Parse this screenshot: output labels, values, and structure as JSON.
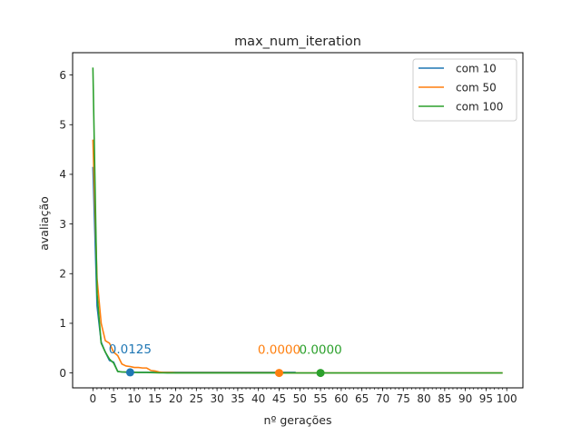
{
  "chart_data": {
    "type": "line",
    "title": "max_num_iteration",
    "xlabel": "nº gerações",
    "ylabel": "avaliação",
    "xlim": [
      -4.9,
      103.9
    ],
    "ylim": [
      -0.3,
      6.45
    ],
    "xticks": [
      "0",
      "5",
      "10",
      "15",
      "20",
      "25",
      "30",
      "35",
      "40",
      "45",
      "50",
      "55",
      "60",
      "65",
      "70",
      "75",
      "80",
      "85",
      "90",
      "95",
      "100"
    ],
    "xtick_values": [
      0,
      5,
      10,
      15,
      20,
      25,
      30,
      35,
      40,
      45,
      50,
      55,
      60,
      65,
      70,
      75,
      80,
      85,
      90,
      95,
      100
    ],
    "xminor_step": 1,
    "yticks": [
      "0",
      "1",
      "2",
      "3",
      "4",
      "5",
      "6"
    ],
    "ytick_values": [
      0,
      1,
      2,
      3,
      4,
      5,
      6
    ],
    "grid": false,
    "legend_position": "upper right",
    "series": [
      {
        "name": "com 10",
        "color": "#1f77b4",
        "x": [
          0,
          1,
          2,
          3,
          4,
          5,
          6,
          7,
          8,
          9,
          10,
          11,
          12,
          13,
          14,
          15,
          16,
          17,
          18,
          19,
          20,
          21,
          22,
          23,
          24,
          25,
          26,
          27,
          28,
          29,
          30,
          31,
          32,
          33,
          34,
          35,
          36,
          37,
          38,
          39,
          40,
          41,
          42,
          43,
          44,
          45,
          46,
          47,
          48,
          49
        ],
        "y": [
          4.15,
          1.35,
          0.62,
          0.42,
          0.25,
          0.22,
          0.03,
          0.02,
          0.015,
          0.0125,
          0.0125,
          0.0125,
          0.0125,
          0.0125,
          0.0125,
          0.0125,
          0.0125,
          0.0125,
          0.0125,
          0.0125,
          0.0125,
          0.0125,
          0.0125,
          0.0125,
          0.0125,
          0.0125,
          0.0125,
          0.0125,
          0.0125,
          0.0125,
          0.0125,
          0.0125,
          0.0125,
          0.0125,
          0.0125,
          0.0125,
          0.0125,
          0.0125,
          0.0125,
          0.0125,
          0.0125,
          0.0125,
          0.0125,
          0.0125,
          0.0125,
          0.0125,
          0.0125,
          0.0125,
          0.0125,
          0.0125
        ],
        "marker": {
          "x": 9,
          "y": 0.0125,
          "label": "0.0125"
        }
      },
      {
        "name": "com 50",
        "color": "#ff7f0e",
        "x": [
          0,
          1,
          2,
          3,
          4,
          5,
          6,
          7,
          8,
          9,
          10,
          11,
          12,
          13,
          14,
          15,
          16,
          17,
          18,
          19,
          20,
          21,
          22,
          23,
          24,
          25,
          26,
          27,
          28,
          29,
          30,
          31,
          32,
          33,
          34,
          35,
          36,
          37,
          38,
          39,
          40,
          41,
          42,
          43,
          44,
          45,
          46,
          47,
          48,
          49,
          50,
          51,
          52,
          53,
          54,
          55,
          56,
          57,
          58,
          59,
          60,
          61,
          62,
          63,
          64,
          65,
          66,
          67,
          68,
          69,
          70,
          71,
          72,
          73,
          74,
          75,
          76,
          77,
          78,
          79,
          80,
          81,
          82,
          83,
          84,
          85,
          86,
          87,
          88,
          89,
          90,
          91,
          92,
          93,
          94,
          95,
          96,
          97,
          98,
          99
        ],
        "y": [
          4.7,
          1.9,
          1.0,
          0.65,
          0.6,
          0.42,
          0.35,
          0.18,
          0.14,
          0.13,
          0.11,
          0.11,
          0.1,
          0.1,
          0.05,
          0.04,
          0.02,
          0.01,
          0.01,
          0.01,
          0.005,
          0.005,
          0.005,
          0.005,
          0.005,
          0.005,
          0.005,
          0.005,
          0.005,
          0.005,
          0.005,
          0.005,
          0.005,
          0.005,
          0.005,
          0.005,
          0.005,
          0.005,
          0.005,
          0.005,
          0.005,
          0.005,
          0.005,
          0.005,
          0.005,
          0.0,
          0.0,
          0.0,
          0.0,
          0.0,
          0.0,
          0.0,
          0.0,
          0.0,
          0.0,
          0.0,
          0.0,
          0.0,
          0.0,
          0.0,
          0.0,
          0.0,
          0.0,
          0.0,
          0.0,
          0.0,
          0.0,
          0.0,
          0.0,
          0.0,
          0.0,
          0.0,
          0.0,
          0.0,
          0.0,
          0.0,
          0.0,
          0.0,
          0.0,
          0.0,
          0.0,
          0.0,
          0.0,
          0.0,
          0.0,
          0.0,
          0.0,
          0.0,
          0.0,
          0.0,
          0.0,
          0.0,
          0.0,
          0.0,
          0.0,
          0.0,
          0.0,
          0.0,
          0.0,
          0.0
        ],
        "marker": {
          "x": 45,
          "y": 0.0,
          "label": "0.0000"
        }
      },
      {
        "name": "com 100",
        "color": "#2ca02c",
        "x": [
          0,
          1,
          2,
          3,
          4,
          5,
          6,
          7,
          8,
          9,
          10,
          11,
          12,
          13,
          14,
          15,
          16,
          17,
          18,
          19,
          20,
          21,
          22,
          23,
          24,
          25,
          26,
          27,
          28,
          29,
          30,
          31,
          32,
          33,
          34,
          35,
          36,
          37,
          38,
          39,
          40,
          41,
          42,
          43,
          44,
          45,
          46,
          47,
          48,
          49,
          50,
          51,
          52,
          53,
          54,
          55,
          56,
          57,
          58,
          59,
          60,
          61,
          62,
          63,
          64,
          65,
          66,
          67,
          68,
          69,
          70,
          71,
          72,
          73,
          74,
          75,
          76,
          77,
          78,
          79,
          80,
          81,
          82,
          83,
          84,
          85,
          86,
          87,
          88,
          89,
          90,
          91,
          92,
          93,
          94,
          95,
          96,
          97,
          98,
          99
        ],
        "y": [
          6.15,
          1.6,
          0.6,
          0.42,
          0.28,
          0.2,
          0.03,
          0.02,
          0.02,
          0.015,
          0.015,
          0.01,
          0.01,
          0.01,
          0.008,
          0.005,
          0.003,
          0.002,
          0.001,
          0.0,
          0.0,
          0.0,
          0.0,
          0.0,
          0.0,
          0.0,
          0.0,
          0.0,
          0.0,
          0.0,
          0.0,
          0.0,
          0.0,
          0.0,
          0.0,
          0.0,
          0.0,
          0.0,
          0.0,
          0.0,
          0.0,
          0.0,
          0.0,
          0.0,
          0.0,
          0.0,
          0.0,
          0.0,
          0.0,
          0.0,
          0.0,
          0.0,
          0.0,
          0.0,
          0.0,
          0.0,
          0.0,
          0.0,
          0.0,
          0.0,
          0.0,
          0.0,
          0.0,
          0.0,
          0.0,
          0.0,
          0.0,
          0.0,
          0.0,
          0.0,
          0.0,
          0.0,
          0.0,
          0.0,
          0.0,
          0.0,
          0.0,
          0.0,
          0.0,
          0.0,
          0.0,
          0.0,
          0.0,
          0.0,
          0.0,
          0.0,
          0.0,
          0.0,
          0.0,
          0.0,
          0.0,
          0.0,
          0.0,
          0.0,
          0.0,
          0.0,
          0.0,
          0.0,
          0.0,
          0.0
        ],
        "marker": {
          "x": 55,
          "y": 0.0,
          "label": "0.0000"
        }
      }
    ]
  }
}
